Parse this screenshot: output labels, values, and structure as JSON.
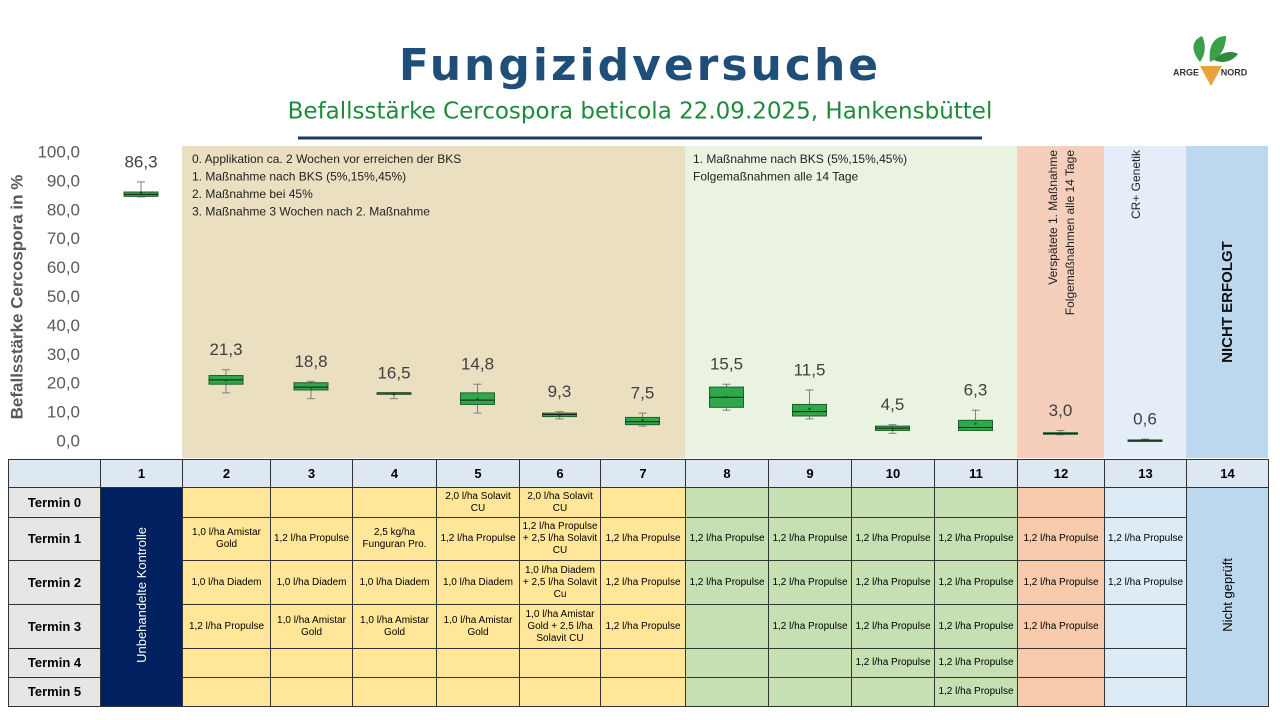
{
  "chart_data": {
    "type": "box",
    "title": "Fungizidversuche",
    "subtitle": "Befallsstärke Cercospora beticola 22.09.2025, Hankensbüttel",
    "y_label": "Befallsstärke Cercospora in %",
    "ylim": [
      0,
      100
    ],
    "yticks": [
      {
        "value": 0,
        "label": "0,0"
      },
      {
        "value": 10,
        "label": "10,0"
      },
      {
        "value": 20,
        "label": "20,0"
      },
      {
        "value": 30,
        "label": "30,0"
      },
      {
        "value": 40,
        "label": "40,0"
      },
      {
        "value": 50,
        "label": "50,0"
      },
      {
        "value": 60,
        "label": "60,0"
      },
      {
        "value": 70,
        "label": "70,0"
      },
      {
        "value": 80,
        "label": "80,0"
      },
      {
        "value": 90,
        "label": "90,0"
      },
      {
        "value": 100,
        "label": "100,0"
      }
    ],
    "color": "#2ea84a",
    "values": [
      86.3,
      21.3,
      18.8,
      16.5,
      14.8,
      9.3,
      7.5,
      15.5,
      11.5,
      4.5,
      6.3,
      3.0,
      0.6
    ],
    "value_labels": [
      "86,3",
      "21,3",
      "18,8",
      "16,5",
      "14,8",
      "9,3",
      "7,5",
      "15,5",
      "11,5",
      "4,5",
      "6,3",
      "3,0",
      "0,6"
    ],
    "boxes": [
      {
        "min": 84.8,
        "q1": 85,
        "median": 85.7,
        "q3": 86.5,
        "max": 90
      },
      {
        "min": 17,
        "q1": 20,
        "median": 21.5,
        "q3": 23,
        "max": 25
      },
      {
        "min": 15,
        "q1": 18,
        "median": 19,
        "q3": 20.5,
        "max": 21
      },
      {
        "min": 15,
        "q1": 16.8,
        "median": 17,
        "q3": 17,
        "max": 17
      },
      {
        "min": 10,
        "q1": 13,
        "median": 14.5,
        "q3": 17,
        "max": 20
      },
      {
        "min": 8,
        "q1": 8.8,
        "median": 9.5,
        "q3": 10,
        "max": 10.5
      },
      {
        "min": 5.5,
        "q1": 6,
        "median": 7,
        "q3": 8.5,
        "max": 10
      },
      {
        "min": 11,
        "q1": 12,
        "median": 15.5,
        "q3": 19,
        "max": 20
      },
      {
        "min": 8,
        "q1": 9,
        "median": 10.5,
        "q3": 13,
        "max": 18
      },
      {
        "min": 3,
        "q1": 4,
        "median": 4.8,
        "q3": 5.5,
        "max": 6
      },
      {
        "min": 4,
        "q1": 4,
        "median": 5,
        "q3": 7.5,
        "max": 11
      },
      {
        "min": 2.5,
        "q1": 2.8,
        "median": 3,
        "q3": 3.2,
        "max": 4
      },
      {
        "min": 0.3,
        "q1": 0.5,
        "median": 0.6,
        "q3": 0.7,
        "max": 1
      }
    ],
    "annotations": [
      [
        "0. Applikation ca. 2 Wochen vor erreichen der BKS",
        "1. Maßnahme nach BKS (5%,15%,45%)",
        "2. Maßnahme bei 45%",
        "3. Maßnahme 3 Wochen nach 2. Maßnahme"
      ],
      [
        "1. Maßnahme nach BKS (5%,15%,45%)",
        "Folgemaßnahmen alle 14 Tage"
      ],
      [
        "Verspätete 1. Maßnahme",
        "Folgemaßnahmen alle 14 Tage"
      ],
      [
        "CR+ Genetik"
      ],
      [
        "NICHT ERFOLGT"
      ]
    ]
  },
  "logo": {
    "left": "ARGE",
    "right": "NORD"
  },
  "table": {
    "header": [
      "1",
      "2",
      "3",
      "4",
      "5",
      "6",
      "7",
      "8",
      "9",
      "10",
      "11",
      "12",
      "13",
      "14"
    ],
    "control": "Unbehandelte Kontrolle",
    "not_tested": "Nicht geprüft",
    "rows": [
      {
        "label": "Termin 0",
        "cells": [
          null,
          null,
          null,
          "2,0 l/ha Solavit CU",
          "2,0 l/ha Solavit CU",
          null,
          null,
          null,
          null,
          null,
          null,
          null
        ]
      },
      {
        "label": "Termin 1",
        "cells": [
          "1,0 l/ha Amistar Gold",
          "1,2 l/ha Propulse",
          "2,5 kg/ha Funguran Pro.",
          "1,2 l/ha Propulse",
          "1,2 l/ha Propulse + 2,5 l/ha Solavit CU",
          "1,2 l/ha Propulse",
          "1,2 l/ha Propulse",
          "1,2 l/ha Propulse",
          "1,2 l/ha Propulse",
          "1,2 l/ha Propulse",
          "1,2 l/ha Propulse",
          "1,2 l/ha Propulse"
        ]
      },
      {
        "label": "Termin 2",
        "cells": [
          "1,0 l/ha Diadem",
          "1,0 l/ha Diadem",
          "1,0 l/ha Diadem",
          "1,0 l/ha Diadem",
          "1,0 l/ha Diadem + 2,5 l/ha Solavit Cu",
          "1,2 l/ha Propulse",
          "1,2 l/ha Propulse",
          "1,2 l/ha Propulse",
          "1,2 l/ha Propulse",
          "1,2 l/ha Propulse",
          "1,2 l/ha Propulse",
          "1,2 l/ha Propulse"
        ]
      },
      {
        "label": "Termin 3",
        "cells": [
          "1,2 l/ha Propulse",
          "1,0 l/ha Amistar Gold",
          "1,0 l/ha Amistar Gold",
          "1,0 l/ha Amistar Gold",
          "1,0 l/ha Amistar Gold + 2,5 l/ha Solavit CU",
          "1,2 l/ha Propulse",
          null,
          "1,2 l/ha Propulse",
          "1,2 l/ha Propulse",
          "1,2 l/ha Propulse",
          "1,2 l/ha Propulse",
          null
        ]
      },
      {
        "label": "Termin 4",
        "cells": [
          null,
          null,
          null,
          null,
          null,
          null,
          null,
          null,
          "1,2 l/ha Propulse",
          "1,2 l/ha Propulse",
          null,
          null
        ]
      },
      {
        "label": "Termin 5",
        "cells": [
          null,
          null,
          null,
          null,
          null,
          null,
          null,
          null,
          null,
          "1,2 l/ha Propulse",
          null,
          null
        ]
      }
    ]
  }
}
